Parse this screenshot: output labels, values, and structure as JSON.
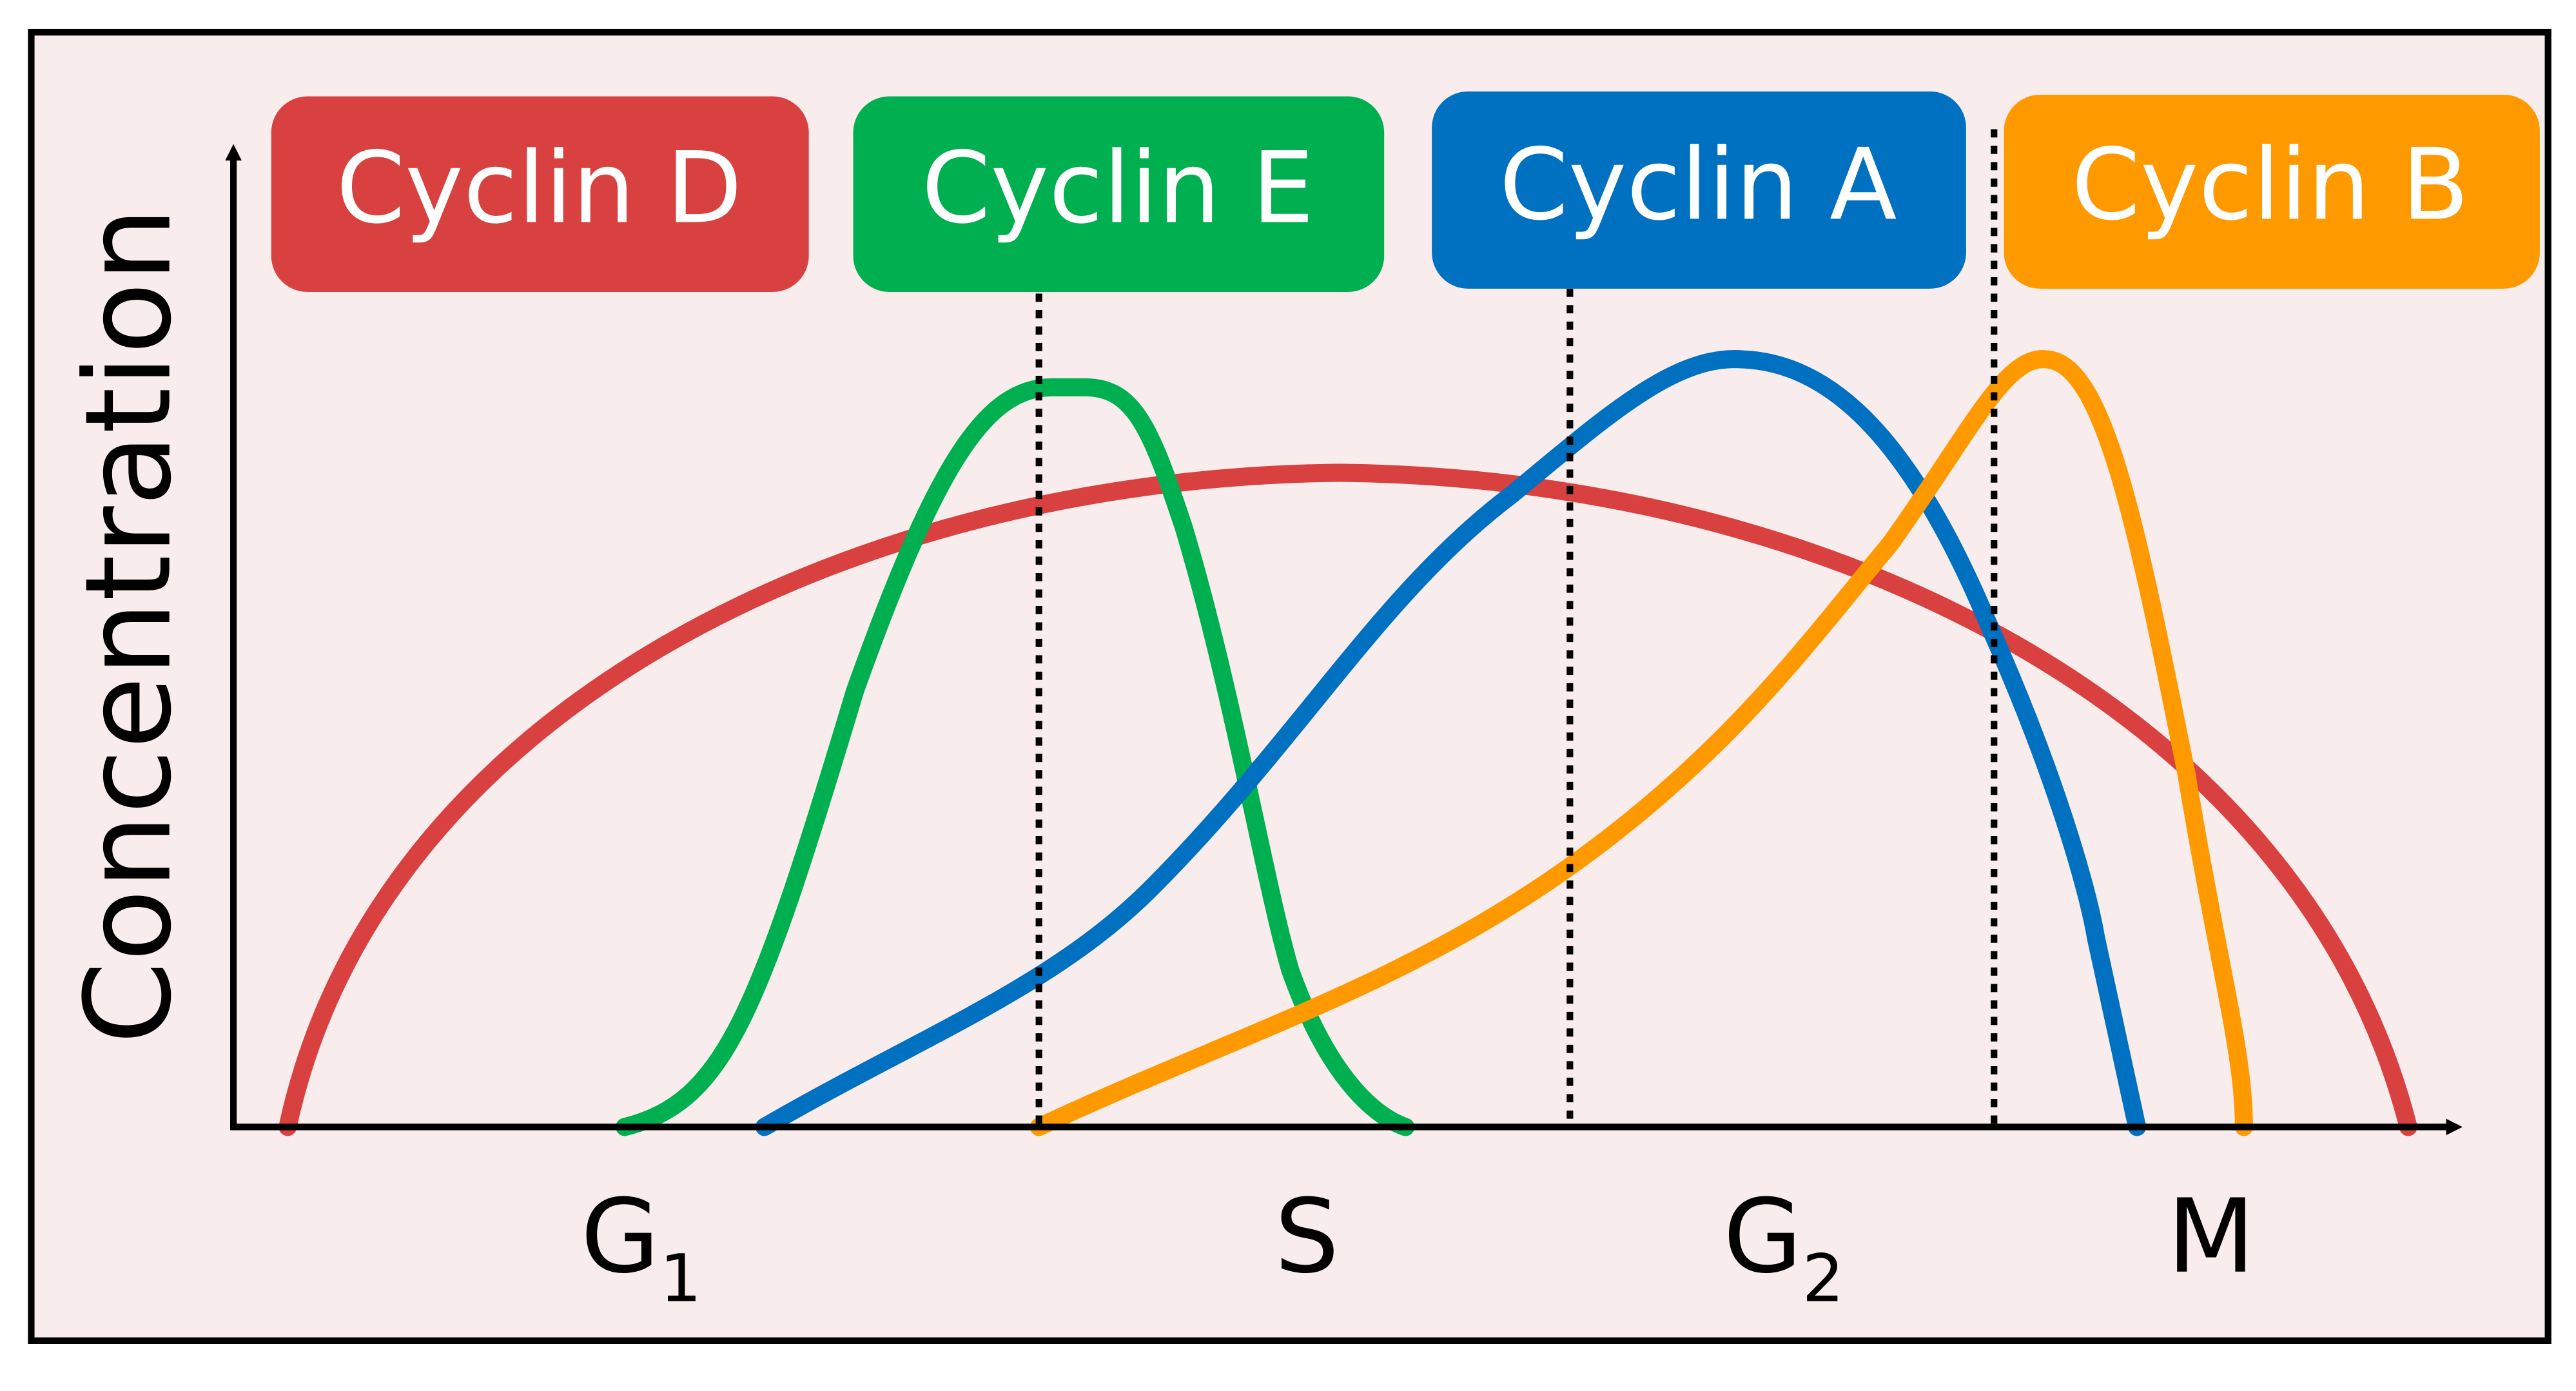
{
  "y_axis_label": "Concentration",
  "cyclins": [
    "Cyclin D",
    "Cyclin E",
    "Cyclin A",
    "Cyclin B"
  ],
  "phases": [
    {
      "label": "G",
      "subscript": "1"
    },
    {
      "label": "S"
    },
    {
      "label": "G",
      "subscript": "2"
    },
    {
      "label": "M"
    }
  ]
}
